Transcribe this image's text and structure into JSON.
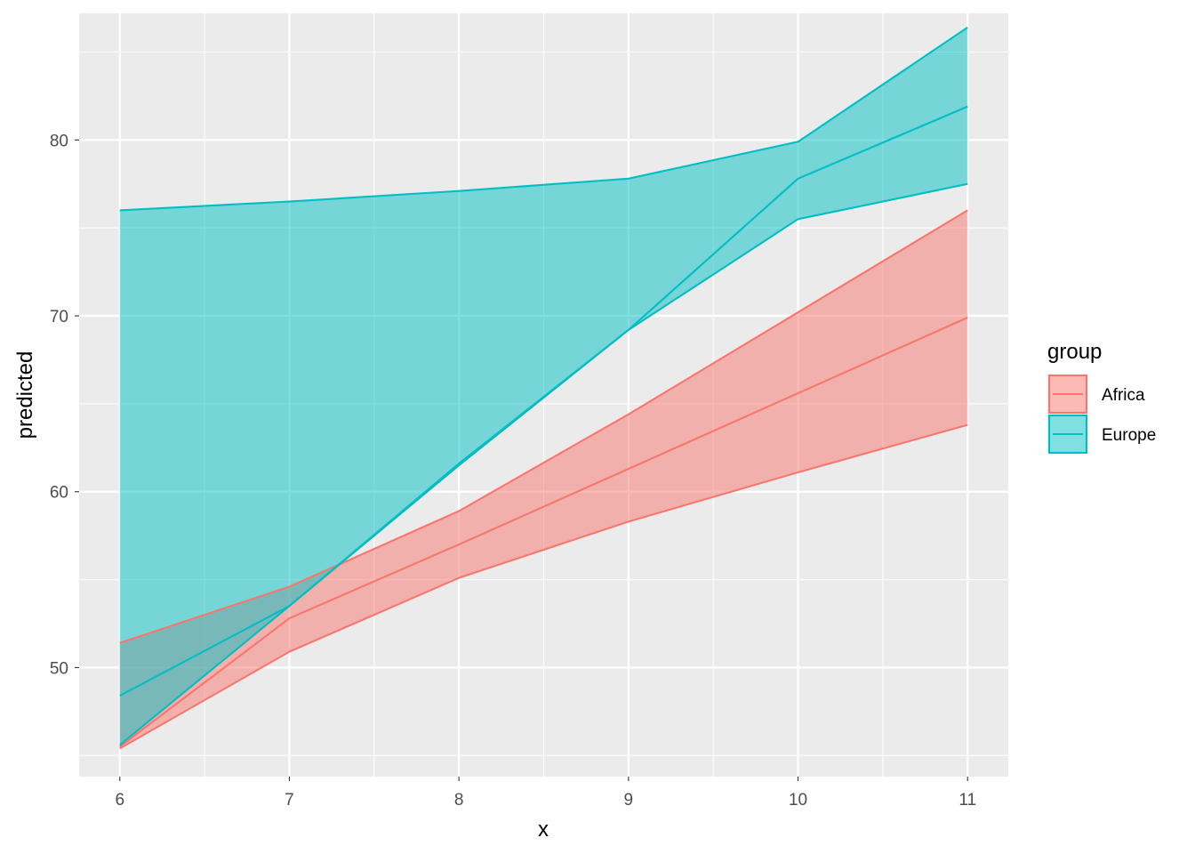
{
  "chart_data": {
    "type": "area",
    "title": "",
    "xlabel": "x",
    "ylabel": "predicted",
    "x": [
      6,
      7,
      8,
      9,
      10,
      11
    ],
    "xlim": [
      5.76,
      11.24
    ],
    "ylim": [
      43.8,
      87.2
    ],
    "x_ticks": [
      6,
      7,
      8,
      9,
      10,
      11
    ],
    "y_ticks": [
      50,
      60,
      70,
      80
    ],
    "grid": true,
    "legend": {
      "title": "group",
      "placement": "right"
    },
    "series": [
      {
        "name": "Africa",
        "color": "#F8766D",
        "predicted": [
          45.5,
          52.8,
          57.0,
          61.3,
          65.6,
          69.9
        ],
        "conf_low": [
          45.4,
          50.9,
          55.1,
          58.3,
          61.1,
          63.8
        ],
        "conf_high": [
          51.4,
          54.6,
          58.9,
          64.4,
          70.2,
          76.0
        ]
      },
      {
        "name": "Europe",
        "color": "#00BFC4",
        "predicted": [
          48.4,
          53.5,
          61.6,
          69.2,
          77.8,
          81.9
        ],
        "conf_low": [
          45.6,
          53.5,
          61.5,
          69.2,
          75.5,
          77.5
        ],
        "conf_high": [
          76.0,
          76.5,
          77.1,
          77.8,
          79.9,
          86.4
        ]
      }
    ]
  }
}
